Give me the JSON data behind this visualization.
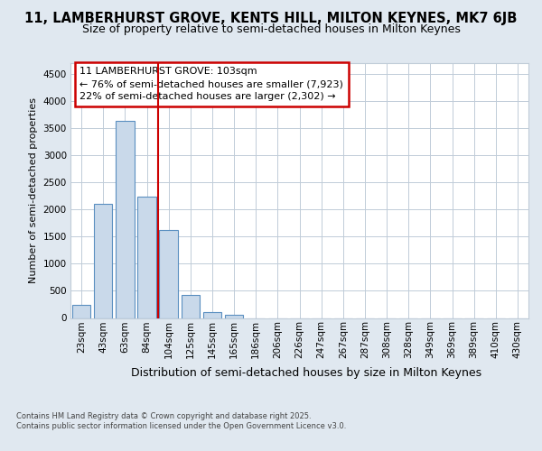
{
  "title1": "11, LAMBERHURST GROVE, KENTS HILL, MILTON KEYNES, MK7 6JB",
  "title2": "Size of property relative to semi-detached houses in Milton Keynes",
  "xlabel": "Distribution of semi-detached houses by size in Milton Keynes",
  "ylabel": "Number of semi-detached properties",
  "annotation_text": "11 LAMBERHURST GROVE: 103sqm\n← 76% of semi-detached houses are smaller (7,923)\n22% of semi-detached houses are larger (2,302) →",
  "categories": [
    "23sqm",
    "43sqm",
    "63sqm",
    "84sqm",
    "104sqm",
    "125sqm",
    "145sqm",
    "165sqm",
    "186sqm",
    "206sqm",
    "226sqm",
    "247sqm",
    "267sqm",
    "287sqm",
    "308sqm",
    "328sqm",
    "349sqm",
    "369sqm",
    "389sqm",
    "410sqm",
    "430sqm"
  ],
  "values": [
    240,
    2100,
    3630,
    2230,
    1620,
    430,
    100,
    55,
    0,
    0,
    0,
    0,
    0,
    0,
    0,
    0,
    0,
    0,
    0,
    0,
    0
  ],
  "bar_color": "#c9d9ea",
  "bar_edge_color": "#5a8fc0",
  "vline_color": "#cc0000",
  "vline_x": 3.5,
  "ylim": [
    0,
    4700
  ],
  "yticks": [
    0,
    500,
    1000,
    1500,
    2000,
    2500,
    3000,
    3500,
    4000,
    4500
  ],
  "bg_color": "#e0e8f0",
  "plot_bg_color": "#ffffff",
  "grid_color": "#c0ccd8",
  "footer_text": "Contains HM Land Registry data © Crown copyright and database right 2025.\nContains public sector information licensed under the Open Government Licence v3.0.",
  "title1_fontsize": 10.5,
  "title2_fontsize": 9,
  "xlabel_fontsize": 9,
  "ylabel_fontsize": 8,
  "tick_fontsize": 7.5,
  "ann_fontsize": 8,
  "footer_fontsize": 6,
  "box_edge_color": "#cc0000"
}
